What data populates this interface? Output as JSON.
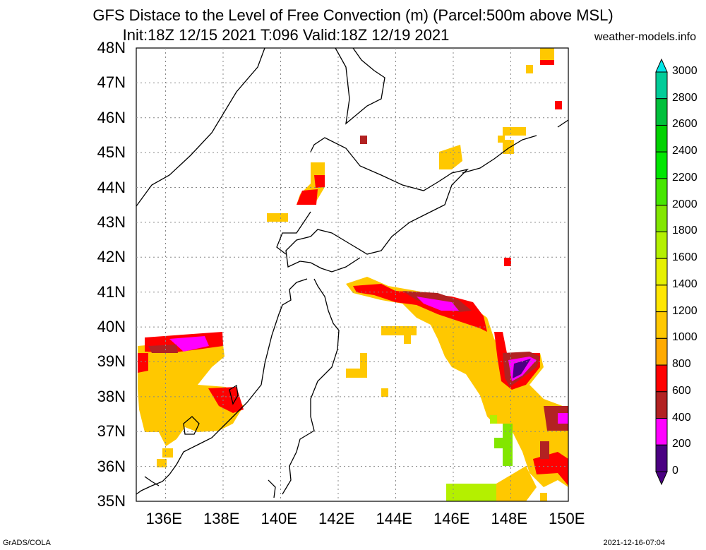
{
  "title": {
    "line1": "GFS Distace to the Level of Free Convection (m) (Parcel:500m above MSL)",
    "line2": "Init:18Z 12/15 2021 T:096 Valid:18Z 12/19 2021"
  },
  "site": "weather-models.info",
  "footer": {
    "left": "GrADS/COLA",
    "right": "2021-12-16-07:04"
  },
  "lat_labels": [
    "48N",
    "47N",
    "46N",
    "45N",
    "44N",
    "43N",
    "42N",
    "41N",
    "40N",
    "39N",
    "38N",
    "37N",
    "36N",
    "35N"
  ],
  "lon_labels": [
    "136E",
    "138E",
    "140E",
    "142E",
    "144E",
    "146E",
    "148E",
    "150E"
  ],
  "colorbar": {
    "labels": [
      "3000",
      "2800",
      "2600",
      "2400",
      "2200",
      "2000",
      "1800",
      "1600",
      "1400",
      "1200",
      "1000",
      "800",
      "600",
      "400",
      "200",
      "0"
    ],
    "colors": [
      "#00e6e6",
      "#00cc99",
      "#00c03c",
      "#00d200",
      "#00e600",
      "#46e600",
      "#82e600",
      "#b4f000",
      "#e6f000",
      "#ffe600",
      "#ffc800",
      "#ffaa00",
      "#ff0000",
      "#b22222",
      "#ff00ff",
      "#4b0082"
    ]
  }
}
